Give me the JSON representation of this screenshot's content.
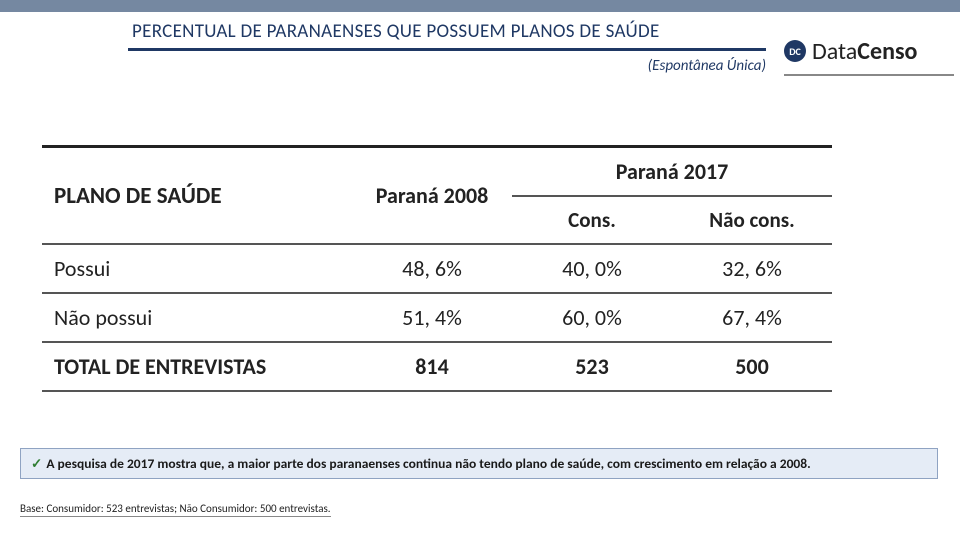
{
  "header": {
    "title": "PERCENTUAL DE PARANAENSES QUE POSSUEM PLANOS DE SAÚDE",
    "subtitle": "(Espontânea Única)"
  },
  "logo": {
    "badge": "DC",
    "brand_light": "Data",
    "brand_bold": "Censo"
  },
  "table": {
    "col_label": "PLANO DE SAÚDE",
    "col_parana_2008": "Paraná 2008",
    "col_parana_2017": "Paraná 2017",
    "sub_cons": "Cons.",
    "sub_naocons": "Não cons.",
    "rows": [
      {
        "label": "Possui",
        "p2008": "48, 6%",
        "cons": "40, 0%",
        "naocons": "32, 6%"
      },
      {
        "label": "Não possui",
        "p2008": "51, 4%",
        "cons": "60, 0%",
        "naocons": "67, 4%"
      }
    ],
    "total": {
      "label": "TOTAL DE ENTREVISTAS",
      "p2008": "814",
      "cons": "523",
      "naocons": "500"
    }
  },
  "note": "A pesquisa de 2017 mostra que, a maior parte dos paranaenses continua não tendo plano de saúde, com crescimento em relação a 2008.",
  "footnote": "Base: Consumidor: 523 entrevistas; Não Consumidor: 500 entrevistas.",
  "colors": {
    "stripe": "#7588a1",
    "title": "#1f3864",
    "note_bg": "#e5ecf6",
    "note_border": "#8fa3c2"
  }
}
